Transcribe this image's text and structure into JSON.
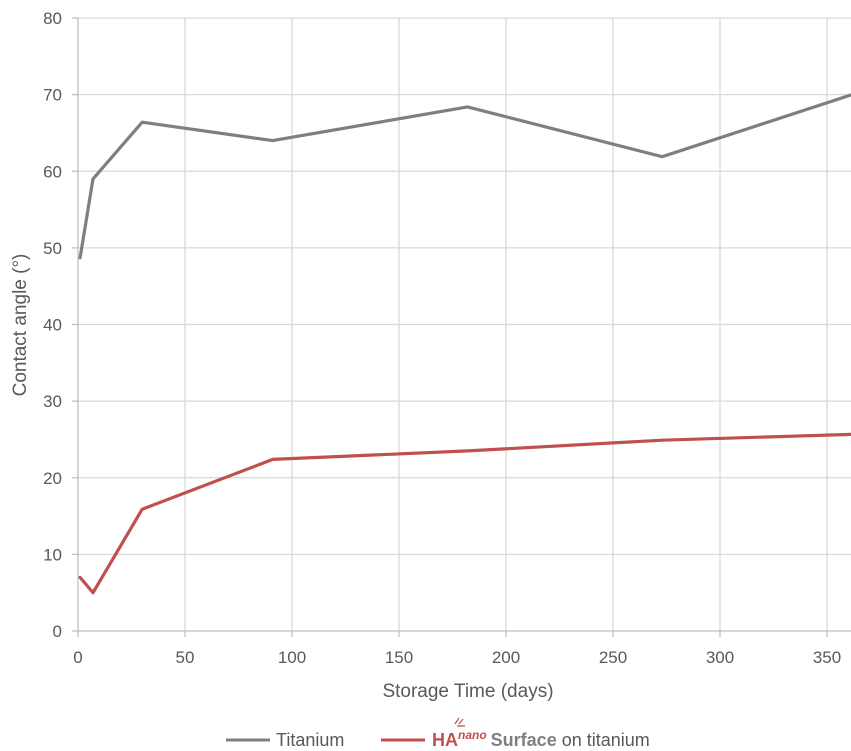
{
  "chart_data": {
    "type": "line",
    "xlabel": "Storage Time (days)",
    "ylabel": "Contact angle (°)",
    "xlim": [
      0,
      360
    ],
    "ylim": [
      0,
      80
    ],
    "xticks": [
      0,
      50,
      100,
      150,
      200,
      250,
      300,
      350
    ],
    "yticks": [
      0,
      10,
      20,
      30,
      40,
      50,
      60,
      70,
      80
    ],
    "grid": true,
    "legend_position": "bottom",
    "series": [
      {
        "name": "Titanium",
        "color": "#7f7f7f",
        "x": [
          1,
          7,
          30,
          91,
          182,
          273,
          365
        ],
        "y": [
          48.7,
          59.0,
          66.4,
          64.0,
          68.4,
          61.9,
          70.3
        ]
      },
      {
        "name": "HAnano Surface on titanium",
        "color": "#c0504d",
        "x": [
          1,
          7,
          30,
          91,
          182,
          273,
          365
        ],
        "y": [
          7.0,
          5.0,
          15.9,
          22.4,
          23.5,
          24.9,
          25.7
        ]
      }
    ]
  },
  "legend": {
    "titanium": "Titanium",
    "ha_prefix": "HA",
    "ha_sup": "nano",
    "ha_surface": "Surface",
    "ha_suffix": "on titanium"
  }
}
